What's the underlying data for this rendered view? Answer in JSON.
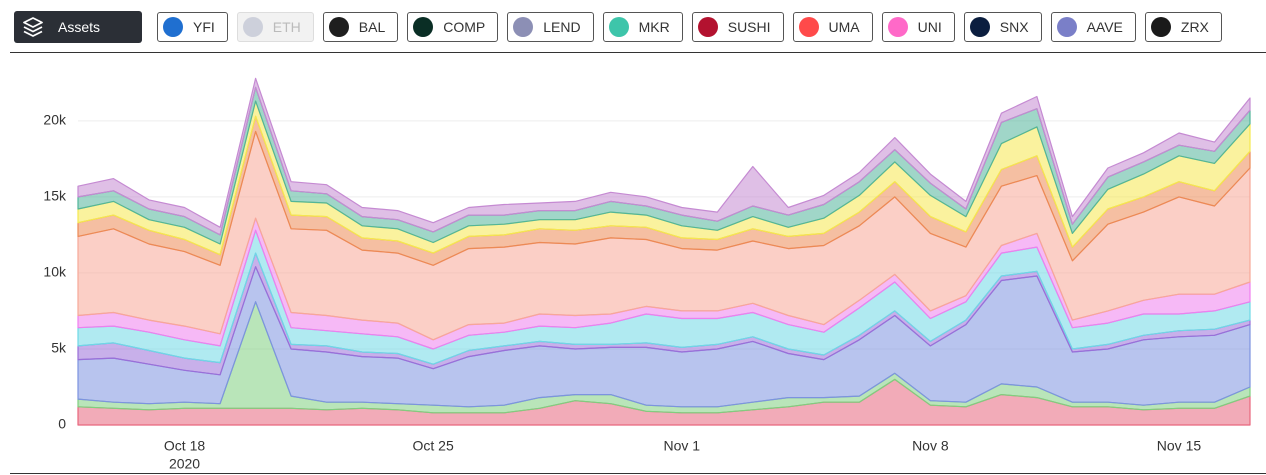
{
  "toolbar": {
    "label": "Assets",
    "buttons": [
      {
        "name": "YFI",
        "icon_color": "#1f6fd0",
        "disabled": false
      },
      {
        "name": "ETH",
        "icon_color": "#8a92b2",
        "disabled": true
      },
      {
        "name": "BAL",
        "icon_color": "#1e1e1e",
        "disabled": false
      },
      {
        "name": "COMP",
        "icon_color": "#0a2e25",
        "disabled": false
      },
      {
        "name": "LEND",
        "icon_color": "#8c8fb5",
        "disabled": false
      },
      {
        "name": "MKR",
        "icon_color": "#3ec5aa",
        "disabled": false
      },
      {
        "name": "SUSHI",
        "icon_color": "#b3122f",
        "disabled": false
      },
      {
        "name": "UMA",
        "icon_color": "#ff4a4a",
        "disabled": false
      },
      {
        "name": "UNI",
        "icon_color": "#ff69c8",
        "disabled": false
      },
      {
        "name": "SNX",
        "icon_color": "#0b1e3f",
        "disabled": false
      },
      {
        "name": "AAVE",
        "icon_color": "#7a7fc8",
        "disabled": false
      },
      {
        "name": "ZRX",
        "icon_color": "#1a1a1a",
        "disabled": false
      }
    ]
  },
  "chart_data": {
    "type": "stacked_area",
    "categories": [
      null,
      null,
      null,
      "Oct 18",
      null,
      null,
      null,
      null,
      null,
      null,
      "Oct 25",
      null,
      null,
      null,
      null,
      null,
      null,
      "Nov 1",
      null,
      null,
      null,
      null,
      null,
      null,
      "Nov 8",
      null,
      null,
      null,
      null,
      null,
      null,
      "Nov 15",
      null,
      null
    ],
    "x_sub_label": "2020",
    "ylim": [
      0,
      24000
    ],
    "yticks": [
      0,
      {
        "value": 5000,
        "label": "5k"
      },
      {
        "value": 10000,
        "label": "10k"
      },
      {
        "value": 15000,
        "label": "15k"
      },
      {
        "value": 20000,
        "label": "20k"
      }
    ],
    "grid": true,
    "series": [
      {
        "name": "UMA",
        "color": "#e8667d",
        "values": [
          1200,
          1100,
          1000,
          1100,
          1100,
          1100,
          1100,
          1000,
          1100,
          1000,
          800,
          800,
          800,
          1100,
          1600,
          1400,
          900,
          800,
          800,
          1000,
          1200,
          1500,
          1500,
          3000,
          1300,
          1200,
          2000,
          1800,
          1200,
          1200,
          1000,
          1100,
          1100,
          1900
        ]
      },
      {
        "name": "COMP",
        "color": "#7fcf7f",
        "values": [
          500,
          400,
          400,
          400,
          300,
          7000,
          800,
          500,
          400,
          400,
          500,
          400,
          500,
          700,
          400,
          600,
          400,
          400,
          400,
          500,
          600,
          300,
          400,
          400,
          300,
          300,
          700,
          700,
          300,
          300,
          300,
          400,
          400,
          600
        ]
      },
      {
        "name": "YFI",
        "color": "#7d93e0",
        "values": [
          2600,
          2900,
          2600,
          2100,
          1900,
          2300,
          3100,
          3300,
          3000,
          3000,
          2400,
          3300,
          3600,
          3400,
          3000,
          3100,
          3800,
          3600,
          3800,
          4000,
          2900,
          2500,
          3700,
          3800,
          3600,
          5100,
          6800,
          7300,
          3300,
          3500,
          4300,
          4300,
          4400,
          4100
        ]
      },
      {
        "name": "LEND",
        "color": "#9a6fd8",
        "values": [
          900,
          1000,
          900,
          800,
          800,
          900,
          300,
          400,
          300,
          300,
          300,
          400,
          300,
          300,
          300,
          200,
          300,
          300,
          300,
          300,
          300,
          300,
          300,
          300,
          300,
          300,
          300,
          300,
          200,
          300,
          300,
          400,
          400,
          300
        ]
      },
      {
        "name": "AAVE",
        "color": "#6fd8e6",
        "values": [
          1200,
          1100,
          1200,
          1200,
          1100,
          1500,
          1100,
          1000,
          1200,
          1100,
          1000,
          1000,
          900,
          1000,
          1100,
          1400,
          1900,
          1900,
          1700,
          1600,
          1600,
          1500,
          1800,
          1900,
          1500,
          1200,
          1500,
          1600,
          1400,
          1400,
          1400,
          1100,
          1200,
          1200
        ]
      },
      {
        "name": "UNI",
        "color": "#ef7fee",
        "values": [
          800,
          900,
          800,
          900,
          800,
          800,
          1000,
          1000,
          900,
          900,
          600,
          700,
          600,
          800,
          800,
          600,
          500,
          500,
          500,
          600,
          600,
          500,
          500,
          500,
          500,
          400,
          500,
          900,
          500,
          800,
          900,
          1300,
          1100,
          1300
        ]
      },
      {
        "name": "SUSHI",
        "color": "#f7a898",
        "values": [
          5200,
          5500,
          5000,
          4900,
          4500,
          5700,
          5500,
          5600,
          4600,
          4600,
          4900,
          5000,
          5000,
          4700,
          4700,
          5000,
          4400,
          4100,
          4000,
          4100,
          4400,
          5200,
          4900,
          5100,
          5100,
          3200,
          3900,
          3800,
          3900,
          5700,
          5800,
          6400,
          5800,
          7500
        ]
      },
      {
        "name": "SNX",
        "color": "#ec8a55",
        "values": [
          900,
          900,
          900,
          800,
          700,
          1000,
          900,
          900,
          800,
          800,
          800,
          800,
          800,
          900,
          900,
          800,
          800,
          700,
          700,
          800,
          800,
          800,
          900,
          1000,
          1100,
          1000,
          1100,
          1300,
          900,
          1000,
          1000,
          1000,
          1000,
          1100
        ]
      },
      {
        "name": "BAL",
        "color": "#f5e84f",
        "values": [
          900,
          900,
          700,
          800,
          700,
          1000,
          900,
          900,
          800,
          800,
          700,
          700,
          700,
          600,
          700,
          900,
          800,
          800,
          600,
          800,
          600,
          1000,
          1100,
          1300,
          1400,
          1000,
          1700,
          1900,
          900,
          1300,
          1500,
          1700,
          1800,
          1800
        ]
      },
      {
        "name": "MKR",
        "color": "#52b59a",
        "values": [
          800,
          700,
          700,
          700,
          600,
          900,
          700,
          600,
          600,
          600,
          700,
          700,
          600,
          600,
          600,
          700,
          600,
          700,
          600,
          700,
          800,
          900,
          900,
          800,
          800,
          500,
          1400,
          1200,
          600,
          800,
          800,
          700,
          800,
          900
        ]
      },
      {
        "name": "ZRX",
        "color": "#c58ad2",
        "values": [
          700,
          800,
          600,
          600,
          500,
          600,
          600,
          600,
          600,
          600,
          600,
          500,
          700,
          500,
          600,
          600,
          600,
          500,
          600,
          2600,
          500,
          600,
          600,
          800,
          600,
          500,
          600,
          800,
          500,
          600,
          600,
          800,
          600,
          800
        ]
      }
    ]
  }
}
